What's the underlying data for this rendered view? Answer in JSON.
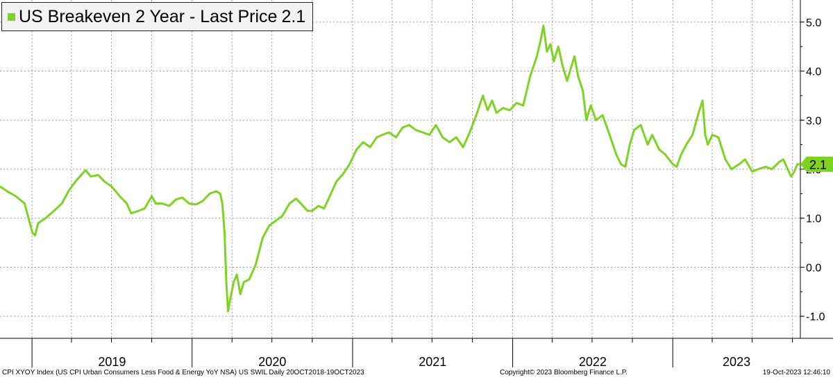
{
  "legend": {
    "title": "US Breakeven 2 Year  - Last Price",
    "last_price": "2.1"
  },
  "colors": {
    "series": "#7ed321",
    "grid": "#9a9a9a",
    "axis": "#000000"
  },
  "footer": {
    "left": "CPI XYOY Index (US CPI Urban Consumers Less Food & Energy YoY NSA) US SWIL  Daily 20OCT2018-19OCT2023",
    "center": "Copyright© 2023 Bloomberg Finance L.P.",
    "right": "19-Oct-2023 12:46:10"
  },
  "chart_data": {
    "type": "line",
    "title": "US Breakeven 2 Year  - Last Price 2.1",
    "xlabel": "",
    "ylabel": "",
    "ylim": [
      -1.45,
      5.45
    ],
    "yticks": [
      -1.0,
      0.0,
      1.0,
      2.0,
      3.0,
      4.0,
      5.0
    ],
    "ytick_labels": [
      "-1.0",
      "0.0",
      "1.0",
      "2.0",
      "3.0",
      "4.0",
      "5.0"
    ],
    "xlim": [
      "2018-10-20",
      "2023-10-19"
    ],
    "year_labels": [
      "2019",
      "2020",
      "2021",
      "2022",
      "2023"
    ],
    "x_gridlines": [
      "2019-01-01",
      "2019-04-01",
      "2019-07-01",
      "2019-10-01",
      "2020-01-01",
      "2020-04-01",
      "2020-07-01",
      "2020-10-01",
      "2021-01-01",
      "2021-04-01",
      "2021-07-01",
      "2021-10-01",
      "2022-01-01",
      "2022-04-01",
      "2022-07-01",
      "2022-10-01",
      "2023-01-01",
      "2023-04-01",
      "2023-07-01",
      "2023-10-01"
    ],
    "last_value_marker": {
      "value": 2.1,
      "label": "2.1"
    },
    "series": [
      {
        "name": "US Breakeven 2 Year",
        "color": "#7ed321",
        "points": [
          [
            "2018-10-20",
            1.65
          ],
          [
            "2018-11-05",
            1.55
          ],
          [
            "2018-11-25",
            1.45
          ],
          [
            "2018-12-15",
            1.3
          ],
          [
            "2019-01-02",
            0.7
          ],
          [
            "2019-01-08",
            0.65
          ],
          [
            "2019-01-15",
            0.9
          ],
          [
            "2019-02-01",
            1.0
          ],
          [
            "2019-02-20",
            1.15
          ],
          [
            "2019-03-10",
            1.3
          ],
          [
            "2019-03-25",
            1.55
          ],
          [
            "2019-04-10",
            1.75
          ],
          [
            "2019-04-25",
            1.9
          ],
          [
            "2019-05-03",
            1.98
          ],
          [
            "2019-05-15",
            1.85
          ],
          [
            "2019-06-01",
            1.88
          ],
          [
            "2019-06-15",
            1.75
          ],
          [
            "2019-07-01",
            1.65
          ],
          [
            "2019-07-20",
            1.45
          ],
          [
            "2019-08-05",
            1.3
          ],
          [
            "2019-08-15",
            1.1
          ],
          [
            "2019-09-01",
            1.15
          ],
          [
            "2019-09-15",
            1.2
          ],
          [
            "2019-10-01",
            1.45
          ],
          [
            "2019-10-10",
            1.3
          ],
          [
            "2019-10-25",
            1.3
          ],
          [
            "2019-11-10",
            1.25
          ],
          [
            "2019-11-25",
            1.38
          ],
          [
            "2019-12-10",
            1.42
          ],
          [
            "2019-12-25",
            1.3
          ],
          [
            "2020-01-10",
            1.28
          ],
          [
            "2020-01-25",
            1.35
          ],
          [
            "2020-02-10",
            1.5
          ],
          [
            "2020-02-25",
            1.55
          ],
          [
            "2020-03-05",
            1.5
          ],
          [
            "2020-03-10",
            1.3
          ],
          [
            "2020-03-15",
            0.7
          ],
          [
            "2020-03-19",
            -0.3
          ],
          [
            "2020-03-23",
            -0.9
          ],
          [
            "2020-03-28",
            -0.65
          ],
          [
            "2020-04-05",
            -0.3
          ],
          [
            "2020-04-12",
            -0.15
          ],
          [
            "2020-04-20",
            -0.55
          ],
          [
            "2020-04-28",
            -0.3
          ],
          [
            "2020-05-10",
            -0.25
          ],
          [
            "2020-05-25",
            0.05
          ],
          [
            "2020-06-10",
            0.6
          ],
          [
            "2020-06-25",
            0.85
          ],
          [
            "2020-07-10",
            0.95
          ],
          [
            "2020-07-25",
            1.05
          ],
          [
            "2020-08-10",
            1.3
          ],
          [
            "2020-08-25",
            1.4
          ],
          [
            "2020-09-05",
            1.3
          ],
          [
            "2020-09-20",
            1.15
          ],
          [
            "2020-10-01",
            1.15
          ],
          [
            "2020-10-15",
            1.25
          ],
          [
            "2020-10-28",
            1.2
          ],
          [
            "2020-11-10",
            1.45
          ],
          [
            "2020-11-25",
            1.75
          ],
          [
            "2020-12-10",
            1.9
          ],
          [
            "2020-12-25",
            2.1
          ],
          [
            "2021-01-10",
            2.4
          ],
          [
            "2021-01-25",
            2.55
          ],
          [
            "2021-02-10",
            2.45
          ],
          [
            "2021-02-25",
            2.65
          ],
          [
            "2021-03-10",
            2.7
          ],
          [
            "2021-03-25",
            2.75
          ],
          [
            "2021-04-10",
            2.65
          ],
          [
            "2021-04-25",
            2.85
          ],
          [
            "2021-05-10",
            2.9
          ],
          [
            "2021-05-25",
            2.8
          ],
          [
            "2021-06-10",
            2.75
          ],
          [
            "2021-06-25",
            2.7
          ],
          [
            "2021-07-10",
            2.9
          ],
          [
            "2021-07-25",
            2.65
          ],
          [
            "2021-08-10",
            2.55
          ],
          [
            "2021-08-25",
            2.65
          ],
          [
            "2021-09-10",
            2.45
          ],
          [
            "2021-09-25",
            2.75
          ],
          [
            "2021-10-10",
            3.1
          ],
          [
            "2021-10-25",
            3.5
          ],
          [
            "2021-11-05",
            3.2
          ],
          [
            "2021-11-15",
            3.4
          ],
          [
            "2021-11-25",
            3.15
          ],
          [
            "2021-12-10",
            3.25
          ],
          [
            "2021-12-25",
            3.2
          ],
          [
            "2022-01-10",
            3.35
          ],
          [
            "2022-01-25",
            3.3
          ],
          [
            "2022-02-10",
            3.9
          ],
          [
            "2022-02-25",
            4.3
          ],
          [
            "2022-03-05",
            4.6
          ],
          [
            "2022-03-12",
            4.93
          ],
          [
            "2022-03-20",
            4.4
          ],
          [
            "2022-03-28",
            4.55
          ],
          [
            "2022-04-05",
            4.2
          ],
          [
            "2022-04-15",
            4.5
          ],
          [
            "2022-04-25",
            4.1
          ],
          [
            "2022-05-05",
            3.8
          ],
          [
            "2022-05-15",
            4.1
          ],
          [
            "2022-05-22",
            4.3
          ],
          [
            "2022-05-30",
            3.9
          ],
          [
            "2022-06-10",
            3.6
          ],
          [
            "2022-06-18",
            3.0
          ],
          [
            "2022-06-28",
            3.3
          ],
          [
            "2022-07-10",
            3.0
          ],
          [
            "2022-07-25",
            3.1
          ],
          [
            "2022-08-10",
            2.7
          ],
          [
            "2022-08-25",
            2.3
          ],
          [
            "2022-09-05",
            2.1
          ],
          [
            "2022-09-15",
            2.05
          ],
          [
            "2022-09-25",
            2.5
          ],
          [
            "2022-10-05",
            2.8
          ],
          [
            "2022-10-20",
            2.9
          ],
          [
            "2022-11-05",
            2.5
          ],
          [
            "2022-11-15",
            2.7
          ],
          [
            "2022-12-01",
            2.4
          ],
          [
            "2022-12-15",
            2.3
          ],
          [
            "2023-01-01",
            2.1
          ],
          [
            "2023-01-10",
            2.05
          ],
          [
            "2023-01-20",
            2.3
          ],
          [
            "2023-02-01",
            2.5
          ],
          [
            "2023-02-15",
            2.7
          ],
          [
            "2023-03-01",
            3.15
          ],
          [
            "2023-03-10",
            3.4
          ],
          [
            "2023-03-16",
            2.7
          ],
          [
            "2023-03-22",
            2.5
          ],
          [
            "2023-04-01",
            2.7
          ],
          [
            "2023-04-15",
            2.65
          ],
          [
            "2023-05-01",
            2.2
          ],
          [
            "2023-05-15",
            2.0
          ],
          [
            "2023-06-01",
            2.1
          ],
          [
            "2023-06-15",
            2.2
          ],
          [
            "2023-07-01",
            1.95
          ],
          [
            "2023-07-15",
            2.0
          ],
          [
            "2023-08-01",
            2.05
          ],
          [
            "2023-08-15",
            2.0
          ],
          [
            "2023-09-01",
            2.15
          ],
          [
            "2023-09-10",
            2.2
          ],
          [
            "2023-09-20",
            2.0
          ],
          [
            "2023-09-28",
            1.85
          ],
          [
            "2023-10-05",
            1.95
          ],
          [
            "2023-10-12",
            2.1
          ],
          [
            "2023-10-19",
            2.1
          ]
        ]
      }
    ]
  }
}
